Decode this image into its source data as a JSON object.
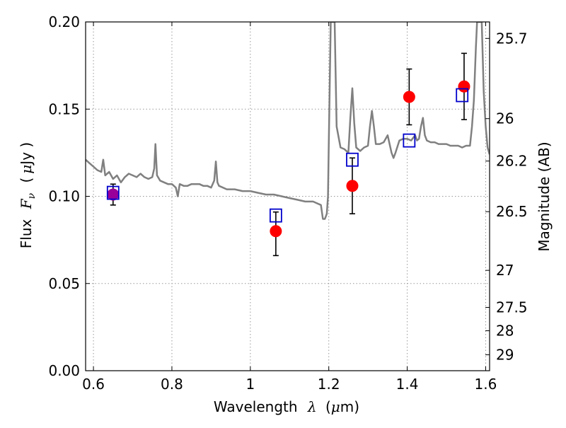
{
  "chart_data": {
    "type": "scatter",
    "xlabel": "Wavelength",
    "xlabel_symbol": "λ",
    "xlabel_unit_prefix": "(",
    "xlabel_unit_mu": "μ",
    "xlabel_unit_suffix": "m)",
    "ylabel": "Flux",
    "ylabel_symbol": "F",
    "ylabel_symbol_sub": "ν",
    "ylabel_unit_prefix": "(",
    "ylabel_unit_mu": "μ",
    "ylabel_unit_suffix": "Jy )",
    "ylabel_right": "Magnitude (AB)",
    "xlim": [
      0.58,
      1.61
    ],
    "ylim": [
      0.0,
      0.2
    ],
    "grid": true,
    "x_ticks": [
      {
        "value": 0.6,
        "label": "0.6"
      },
      {
        "value": 0.8,
        "label": "0.8"
      },
      {
        "value": 1.0,
        "label": "1"
      },
      {
        "value": 1.2,
        "label": "1.2"
      },
      {
        "value": 1.4,
        "label": "1.4"
      },
      {
        "value": 1.6,
        "label": "1.6"
      }
    ],
    "y_ticks": [
      {
        "value": 0.0,
        "label": "0.00"
      },
      {
        "value": 0.05,
        "label": "0.05"
      },
      {
        "value": 0.1,
        "label": "0.10"
      },
      {
        "value": 0.15,
        "label": "0.15"
      },
      {
        "value": 0.2,
        "label": "0.20"
      }
    ],
    "mag_ticks": [
      {
        "value": 25.7,
        "label": "25.7"
      },
      {
        "value": 26.0,
        "label": "26"
      },
      {
        "value": 26.2,
        "label": "26.2"
      },
      {
        "value": 26.5,
        "label": "26.5"
      },
      {
        "value": 27.0,
        "label": "27"
      },
      {
        "value": 27.5,
        "label": "27.5"
      },
      {
        "value": 28.0,
        "label": "28"
      },
      {
        "value": 29.0,
        "label": "29"
      }
    ],
    "mag_zeropoint": 23.9,
    "colors": {
      "spectrum": "#808080",
      "observed": "#ff0000",
      "model": "#0000cc",
      "blend": "#990099",
      "errorbar": "#000000",
      "grid": "#999999"
    },
    "series": [
      {
        "kind": "spectrum",
        "points": [
          [
            0.58,
            0.121
          ],
          [
            0.59,
            0.119
          ],
          [
            0.6,
            0.117
          ],
          [
            0.61,
            0.115
          ],
          [
            0.62,
            0.114
          ],
          [
            0.625,
            0.121
          ],
          [
            0.63,
            0.112
          ],
          [
            0.64,
            0.114
          ],
          [
            0.65,
            0.11
          ],
          [
            0.66,
            0.112
          ],
          [
            0.67,
            0.108
          ],
          [
            0.68,
            0.111
          ],
          [
            0.69,
            0.113
          ],
          [
            0.7,
            0.112
          ],
          [
            0.71,
            0.111
          ],
          [
            0.72,
            0.113
          ],
          [
            0.73,
            0.111
          ],
          [
            0.74,
            0.11
          ],
          [
            0.75,
            0.111
          ],
          [
            0.755,
            0.116
          ],
          [
            0.758,
            0.13
          ],
          [
            0.762,
            0.112
          ],
          [
            0.77,
            0.109
          ],
          [
            0.78,
            0.108
          ],
          [
            0.79,
            0.107
          ],
          [
            0.8,
            0.107
          ],
          [
            0.81,
            0.105
          ],
          [
            0.815,
            0.1
          ],
          [
            0.82,
            0.107
          ],
          [
            0.83,
            0.106
          ],
          [
            0.84,
            0.106
          ],
          [
            0.85,
            0.107
          ],
          [
            0.86,
            0.107
          ],
          [
            0.87,
            0.107
          ],
          [
            0.88,
            0.106
          ],
          [
            0.89,
            0.106
          ],
          [
            0.9,
            0.105
          ],
          [
            0.908,
            0.109
          ],
          [
            0.912,
            0.12
          ],
          [
            0.916,
            0.108
          ],
          [
            0.92,
            0.106
          ],
          [
            0.94,
            0.104
          ],
          [
            0.96,
            0.104
          ],
          [
            0.98,
            0.103
          ],
          [
            1.0,
            0.103
          ],
          [
            1.02,
            0.102
          ],
          [
            1.04,
            0.101
          ],
          [
            1.06,
            0.101
          ],
          [
            1.08,
            0.1
          ],
          [
            1.1,
            0.099
          ],
          [
            1.12,
            0.098
          ],
          [
            1.14,
            0.097
          ],
          [
            1.16,
            0.097
          ],
          [
            1.17,
            0.096
          ],
          [
            1.18,
            0.095
          ],
          [
            1.185,
            0.087
          ],
          [
            1.19,
            0.087
          ],
          [
            1.195,
            0.09
          ],
          [
            1.198,
            0.1
          ],
          [
            1.2,
            0.13
          ],
          [
            1.205,
            0.2
          ],
          [
            1.215,
            0.2
          ],
          [
            1.22,
            0.14
          ],
          [
            1.23,
            0.128
          ],
          [
            1.24,
            0.127
          ],
          [
            1.25,
            0.125
          ],
          [
            1.255,
            0.145
          ],
          [
            1.26,
            0.162
          ],
          [
            1.265,
            0.142
          ],
          [
            1.27,
            0.128
          ],
          [
            1.28,
            0.126
          ],
          [
            1.29,
            0.128
          ],
          [
            1.3,
            0.129
          ],
          [
            1.305,
            0.14
          ],
          [
            1.31,
            0.149
          ],
          [
            1.315,
            0.14
          ],
          [
            1.32,
            0.13
          ],
          [
            1.33,
            0.13
          ],
          [
            1.34,
            0.131
          ],
          [
            1.35,
            0.135
          ],
          [
            1.36,
            0.125
          ],
          [
            1.365,
            0.122
          ],
          [
            1.37,
            0.125
          ],
          [
            1.38,
            0.132
          ],
          [
            1.39,
            0.133
          ],
          [
            1.4,
            0.133
          ],
          [
            1.41,
            0.132
          ],
          [
            1.42,
            0.135
          ],
          [
            1.425,
            0.132
          ],
          [
            1.43,
            0.133
          ],
          [
            1.435,
            0.14
          ],
          [
            1.44,
            0.145
          ],
          [
            1.445,
            0.135
          ],
          [
            1.45,
            0.132
          ],
          [
            1.46,
            0.131
          ],
          [
            1.47,
            0.131
          ],
          [
            1.48,
            0.13
          ],
          [
            1.49,
            0.13
          ],
          [
            1.5,
            0.13
          ],
          [
            1.51,
            0.129
          ],
          [
            1.52,
            0.129
          ],
          [
            1.53,
            0.129
          ],
          [
            1.54,
            0.128
          ],
          [
            1.55,
            0.129
          ],
          [
            1.56,
            0.129
          ],
          [
            1.565,
            0.14
          ],
          [
            1.57,
            0.155
          ],
          [
            1.575,
            0.185
          ],
          [
            1.578,
            0.2
          ],
          [
            1.59,
            0.2
          ],
          [
            1.595,
            0.16
          ],
          [
            1.6,
            0.14
          ],
          [
            1.605,
            0.128
          ],
          [
            1.61,
            0.124
          ]
        ]
      },
      {
        "kind": "observed",
        "points": [
          {
            "x": 0.65,
            "y": 0.101,
            "yerr_low": 0.095,
            "yerr_high": 0.107
          },
          {
            "x": 1.065,
            "y": 0.08,
            "yerr_low": 0.066,
            "yerr_high": 0.091
          },
          {
            "x": 1.26,
            "y": 0.106,
            "yerr_low": 0.09,
            "yerr_high": 0.122
          },
          {
            "x": 1.405,
            "y": 0.157,
            "yerr_low": 0.141,
            "yerr_high": 0.173
          },
          {
            "x": 1.545,
            "y": 0.163,
            "yerr_low": 0.144,
            "yerr_high": 0.182
          }
        ]
      },
      {
        "kind": "model",
        "points": [
          {
            "x": 0.65,
            "y": 0.102
          },
          {
            "x": 1.065,
            "y": 0.089
          },
          {
            "x": 1.26,
            "y": 0.121
          },
          {
            "x": 1.405,
            "y": 0.132
          },
          {
            "x": 1.54,
            "y": 0.158
          }
        ]
      }
    ]
  }
}
